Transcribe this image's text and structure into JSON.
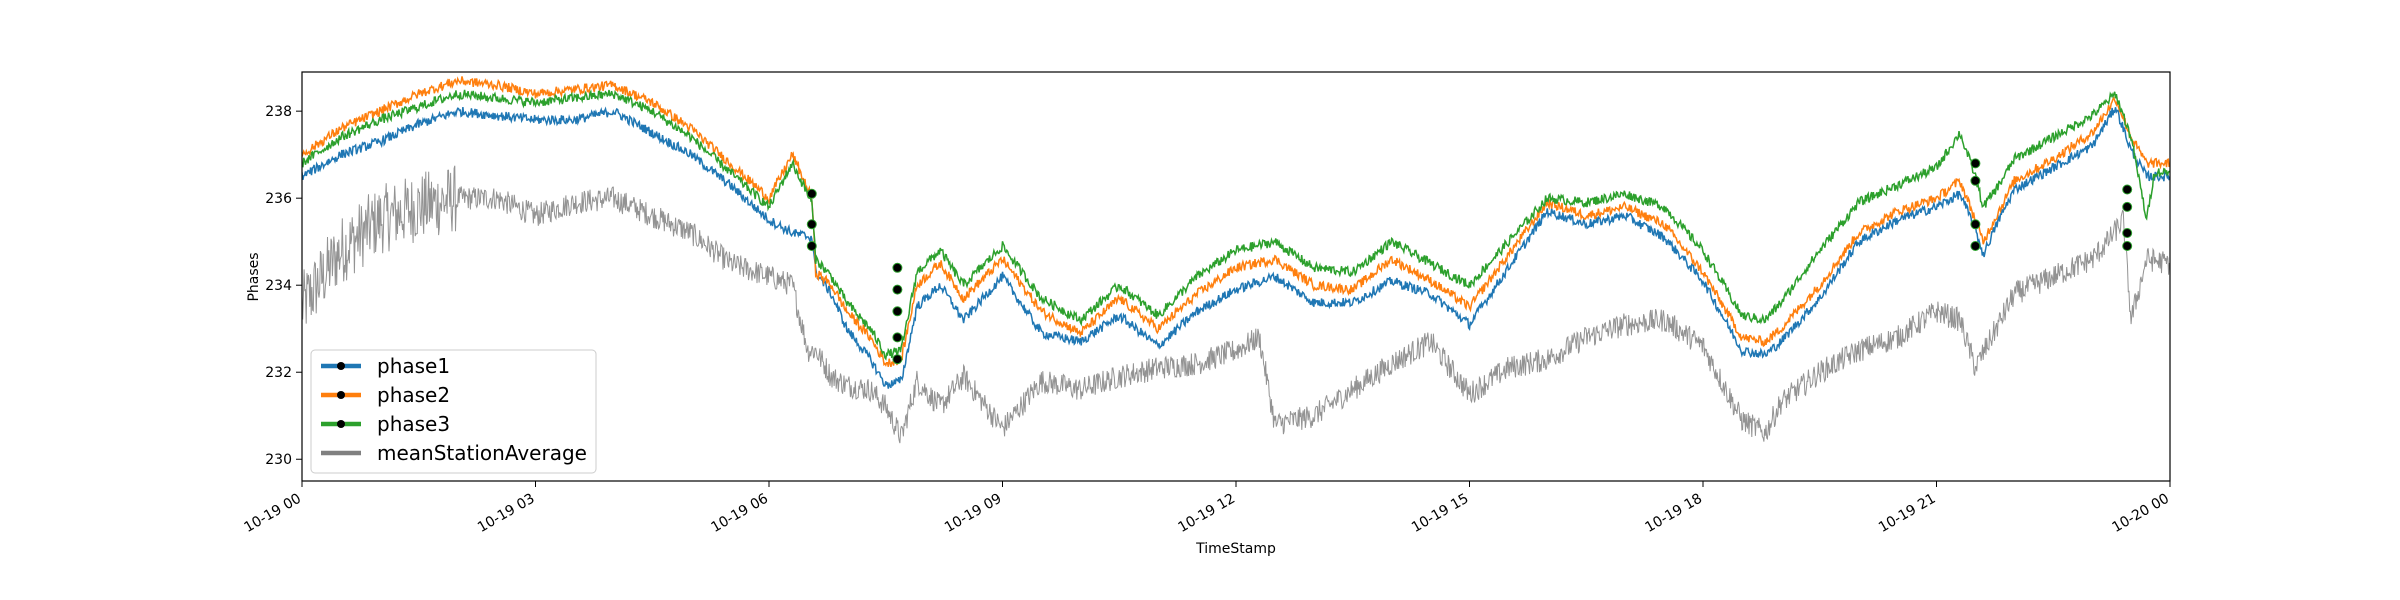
{
  "chart_data": {
    "type": "line",
    "xlabel": "TimeStamp",
    "ylabel": "Phases",
    "xlim": [
      0,
      24
    ],
    "ylim": [
      229.5,
      238.9
    ],
    "x_ticks": [
      {
        "value": 0,
        "label": "10-19 00"
      },
      {
        "value": 3,
        "label": "10-19 03"
      },
      {
        "value": 6,
        "label": "10-19 06"
      },
      {
        "value": 9,
        "label": "10-19 09"
      },
      {
        "value": 12,
        "label": "10-19 12"
      },
      {
        "value": 15,
        "label": "10-19 15"
      },
      {
        "value": 18,
        "label": "10-19 18"
      },
      {
        "value": 21,
        "label": "10-19 21"
      },
      {
        "value": 24,
        "label": "10-20 00"
      }
    ],
    "y_ticks": [
      230,
      232,
      234,
      236,
      238
    ],
    "legend": {
      "placement": "lower-left"
    },
    "grid": false,
    "series": [
      {
        "name": "phase1",
        "color": "#1f77b4",
        "x": [
          0,
          0.5,
          1,
          1.5,
          2,
          2.5,
          3,
          3.5,
          4,
          4.5,
          5,
          5.5,
          6,
          6.3,
          6.55,
          6.6,
          6.8,
          7,
          7.3,
          7.5,
          7.7,
          7.9,
          8.2,
          8.5,
          9,
          9.5,
          10,
          10.5,
          11,
          11.5,
          12,
          12.5,
          13,
          13.5,
          14,
          14.5,
          15,
          15.5,
          16,
          16.5,
          17,
          17.5,
          18,
          18.5,
          18.8,
          19,
          19.5,
          20,
          20.5,
          21,
          21.3,
          21.5,
          21.6,
          21.8,
          22,
          22.5,
          23,
          23.3,
          23.5,
          23.7,
          23.8,
          24
        ],
        "y": [
          236.5,
          237,
          237.3,
          237.7,
          238,
          237.9,
          237.8,
          237.8,
          238,
          237.5,
          237,
          236.3,
          235.5,
          235.2,
          235.1,
          234.3,
          233.8,
          233,
          232.3,
          231.7,
          231.8,
          233.5,
          234,
          233.2,
          234.2,
          232.9,
          232.7,
          233.3,
          232.6,
          233.4,
          233.9,
          234.2,
          233.6,
          233.6,
          234.1,
          233.8,
          233.1,
          234.4,
          235.7,
          235.4,
          235.6,
          235.1,
          234.1,
          232.5,
          232.4,
          232.7,
          233.7,
          235,
          235.5,
          235.8,
          236.1,
          235.3,
          234.7,
          235.5,
          236.2,
          236.7,
          237.2,
          238.1,
          237.1,
          236.5,
          236.5,
          236.5
        ]
      },
      {
        "name": "phase2",
        "color": "#ff7f0e",
        "x": [
          0,
          0.5,
          1,
          1.5,
          2,
          2.5,
          3,
          3.5,
          4,
          4.5,
          5,
          5.5,
          6,
          6.3,
          6.55,
          6.6,
          6.8,
          7,
          7.3,
          7.5,
          7.7,
          7.9,
          8.2,
          8.5,
          9,
          9.5,
          10,
          10.5,
          11,
          11.5,
          12,
          12.5,
          13,
          13.5,
          14,
          14.5,
          15,
          15.5,
          16,
          16.5,
          17,
          17.5,
          18,
          18.5,
          18.8,
          19,
          19.5,
          20,
          20.5,
          21,
          21.3,
          21.5,
          21.6,
          21.8,
          22,
          22.5,
          23,
          23.3,
          23.5,
          23.7,
          23.8,
          24
        ],
        "y": [
          237,
          237.6,
          238,
          238.4,
          238.7,
          238.6,
          238.4,
          238.5,
          238.6,
          238.2,
          237.6,
          236.8,
          236,
          237,
          236,
          234.3,
          234,
          233.4,
          232.8,
          232.2,
          232.3,
          234,
          234.5,
          233.7,
          234.6,
          233.4,
          232.9,
          233.7,
          233,
          233.8,
          234.4,
          234.6,
          234,
          233.9,
          234.6,
          234.1,
          233.5,
          234.7,
          235.9,
          235.6,
          235.8,
          235.4,
          234.3,
          232.8,
          232.7,
          233,
          234,
          235.2,
          235.7,
          236,
          236.4,
          235.5,
          235,
          235.7,
          236.4,
          236.9,
          237.5,
          238.3,
          237.4,
          236.8,
          236.8,
          236.8
        ]
      },
      {
        "name": "phase3",
        "color": "#2ca02c",
        "x": [
          0,
          0.5,
          1,
          1.5,
          2,
          2.5,
          3,
          3.5,
          4,
          4.5,
          5,
          5.5,
          6,
          6.3,
          6.55,
          6.6,
          6.8,
          7,
          7.3,
          7.5,
          7.7,
          7.9,
          8.2,
          8.5,
          9,
          9.5,
          10,
          10.5,
          11,
          11.5,
          12,
          12.5,
          13,
          13.5,
          14,
          14.5,
          15,
          15.5,
          16,
          16.5,
          17,
          17.5,
          18,
          18.5,
          18.8,
          19,
          19.5,
          20,
          20.5,
          21,
          21.3,
          21.5,
          21.6,
          21.8,
          22,
          22.5,
          23,
          23.3,
          23.5,
          23.7,
          23.8,
          24
        ],
        "y": [
          236.8,
          237.4,
          237.8,
          238.1,
          238.4,
          238.3,
          238.2,
          238.3,
          238.4,
          238,
          237.4,
          236.6,
          235.8,
          236.8,
          235.9,
          234.6,
          234.2,
          233.6,
          233,
          232.4,
          232.5,
          234.3,
          234.8,
          234,
          234.9,
          233.7,
          233.2,
          234,
          233.3,
          234.2,
          234.8,
          235,
          234.4,
          234.3,
          235,
          234.5,
          234,
          235,
          236,
          235.9,
          236.1,
          235.8,
          234.8,
          233.3,
          233.2,
          233.6,
          234.8,
          235.9,
          236.3,
          236.7,
          237.5,
          236.5,
          235.8,
          236.3,
          236.9,
          237.4,
          237.9,
          238.4,
          237.4,
          235.5,
          236.6,
          236.6
        ]
      },
      {
        "name": "meanStationAverage",
        "color": "#808080",
        "x": [
          0,
          0.5,
          1,
          1.5,
          2,
          2.5,
          3,
          3.5,
          4,
          4.5,
          5,
          5.5,
          6,
          6.3,
          6.5,
          6.6,
          6.8,
          7,
          7.3,
          7.5,
          7.7,
          7.9,
          8.2,
          8.5,
          9,
          9.5,
          10,
          10.5,
          11,
          11.5,
          12,
          12.3,
          12.5,
          13,
          13.5,
          14,
          14.5,
          15,
          15.5,
          16,
          16.5,
          17,
          17.5,
          18,
          18.5,
          18.8,
          19,
          19.5,
          20,
          20.5,
          21,
          21.3,
          21.5,
          22,
          22.5,
          23,
          23.2,
          23.4,
          23.5,
          23.7,
          24
        ],
        "y": [
          233.5,
          234.8,
          235.5,
          235.8,
          236,
          236,
          235.6,
          235.9,
          236,
          235.6,
          235.2,
          234.5,
          234.2,
          234,
          232.5,
          232.5,
          231.9,
          231.7,
          231.6,
          231.2,
          230.5,
          231.8,
          231.2,
          231.9,
          230.7,
          231.8,
          231.6,
          231.9,
          232.1,
          232.2,
          232.5,
          232.8,
          230.8,
          231,
          231.6,
          232.2,
          232.7,
          231.5,
          232.1,
          232.3,
          232.8,
          233.1,
          233.2,
          232.6,
          230.9,
          230.6,
          231.3,
          232,
          232.5,
          232.8,
          233.4,
          233.2,
          232.1,
          233.8,
          234.2,
          234.6,
          235,
          235.5,
          233.2,
          234.6,
          234.5
        ]
      }
    ],
    "markers": [
      {
        "x": 6.55,
        "y": 236.1
      },
      {
        "x": 6.55,
        "y": 235.4
      },
      {
        "x": 6.55,
        "y": 234.9
      },
      {
        "x": 7.65,
        "y": 234.4
      },
      {
        "x": 7.65,
        "y": 233.9
      },
      {
        "x": 7.65,
        "y": 233.4
      },
      {
        "x": 7.65,
        "y": 232.8
      },
      {
        "x": 7.65,
        "y": 232.3
      },
      {
        "x": 21.5,
        "y": 236.8
      },
      {
        "x": 21.5,
        "y": 236.4
      },
      {
        "x": 21.5,
        "y": 235.4
      },
      {
        "x": 21.5,
        "y": 234.9
      },
      {
        "x": 23.45,
        "y": 236.2
      },
      {
        "x": 23.45,
        "y": 235.8
      },
      {
        "x": 23.45,
        "y": 235.2
      },
      {
        "x": 23.45,
        "y": 234.9
      }
    ]
  }
}
